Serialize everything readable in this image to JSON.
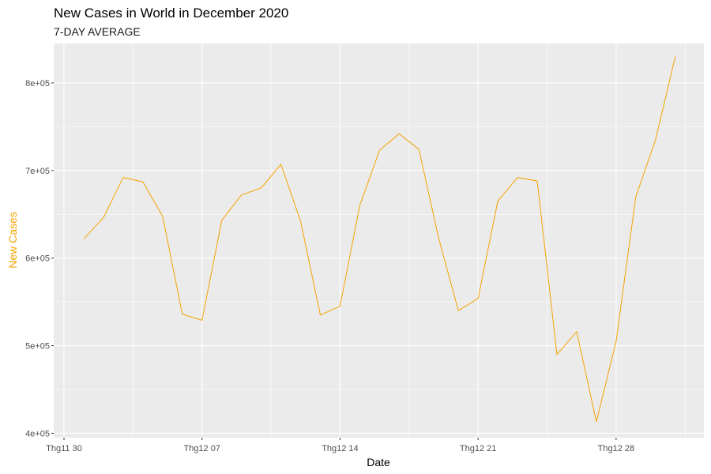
{
  "chart_data": {
    "type": "line",
    "title": "New Cases in World in December 2020",
    "subtitle": "7-DAY AVERAGE",
    "xlabel": "Date",
    "ylabel": "New Cases",
    "x_tick_labels": [
      "Thg11 30",
      "Thg12 07",
      "Thg12 14",
      "Thg12 21",
      "Thg12 28"
    ],
    "y_tick_labels": [
      "4e+05",
      "5e+05",
      "6e+05",
      "7e+05",
      "8e+05"
    ],
    "y_ticks": [
      400000,
      500000,
      600000,
      700000,
      800000
    ],
    "ylim": [
      395000,
      845000
    ],
    "grid": true,
    "colors": {
      "line": "#f5a300",
      "panel": "#ebebeb",
      "grid": "#ffffff",
      "ylabel": "#f5a300"
    },
    "series": [
      {
        "x": [
          "2020-12-01",
          "2020-12-02",
          "2020-12-03",
          "2020-12-04",
          "2020-12-05",
          "2020-12-06",
          "2020-12-07",
          "2020-12-08",
          "2020-12-09",
          "2020-12-10",
          "2020-12-11",
          "2020-12-12",
          "2020-12-13",
          "2020-12-14",
          "2020-12-15",
          "2020-12-16",
          "2020-12-17",
          "2020-12-18",
          "2020-12-19",
          "2020-12-20",
          "2020-12-21",
          "2020-12-22",
          "2020-12-23",
          "2020-12-24",
          "2020-12-25",
          "2020-12-26",
          "2020-12-27",
          "2020-12-28",
          "2020-12-29",
          "2020-12-30",
          "2020-12-31"
        ],
        "values": [
          622000,
          646000,
          692000,
          687000,
          648000,
          536000,
          529000,
          643000,
          672000,
          680000,
          707000,
          642000,
          535000,
          545000,
          660000,
          723000,
          742000,
          724000,
          623000,
          540000,
          554000,
          665000,
          692000,
          688000,
          490000,
          516000,
          413000,
          505000,
          670000,
          735000,
          830000
        ]
      }
    ]
  }
}
